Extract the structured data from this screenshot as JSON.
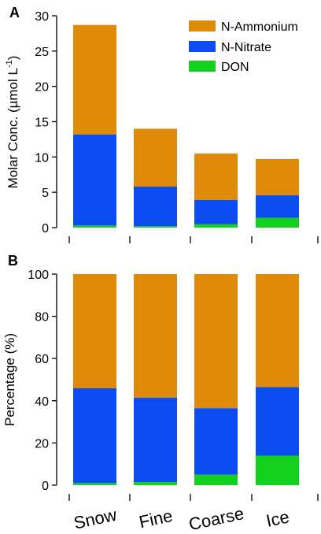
{
  "colors": {
    "ammonium": "#E08A0A",
    "nitrate": "#0A4CF0",
    "don": "#14D01E"
  },
  "chart_data": [
    {
      "panel": "A",
      "type": "bar",
      "stacked": true,
      "categories": [
        "Snow",
        "Fine",
        "Coarse",
        "Ice"
      ],
      "ylabel": "Molar Conc. (µmol L",
      "ylabel_sup": "-1",
      "ylabel_close": ")",
      "ylim": [
        0,
        30
      ],
      "yticks": [
        0,
        5,
        10,
        15,
        20,
        25,
        30
      ],
      "legend_position": "top-right",
      "series": [
        {
          "name": "DON",
          "key": "don",
          "values": [
            0.3,
            0.2,
            0.5,
            1.4
          ]
        },
        {
          "name": "N-Nitrate",
          "key": "nitrate",
          "values": [
            12.9,
            5.6,
            3.4,
            3.2
          ]
        },
        {
          "name": "N-Ammonium",
          "key": "ammonium",
          "values": [
            15.5,
            8.2,
            6.6,
            5.1
          ]
        }
      ]
    },
    {
      "panel": "B",
      "type": "bar",
      "stacked": true,
      "categories": [
        "Snow",
        "Fine",
        "Coarse",
        "Ice"
      ],
      "ylabel": "Percentage (%)",
      "ylim": [
        0,
        100
      ],
      "yticks": [
        0,
        20,
        40,
        60,
        80,
        100
      ],
      "series": [
        {
          "name": "DON",
          "key": "don",
          "values": [
            1,
            1.5,
            5,
            14
          ]
        },
        {
          "name": "N-Nitrate",
          "key": "nitrate",
          "values": [
            45,
            40,
            31.5,
            32.5
          ]
        },
        {
          "name": "N-Ammonium",
          "key": "ammonium",
          "values": [
            54,
            58.5,
            63.5,
            53.5
          ]
        }
      ]
    }
  ],
  "legend": [
    {
      "name": "N-Ammonium",
      "key": "ammonium"
    },
    {
      "name": "N-Nitrate",
      "key": "nitrate"
    },
    {
      "name": "DON",
      "key": "don"
    }
  ]
}
